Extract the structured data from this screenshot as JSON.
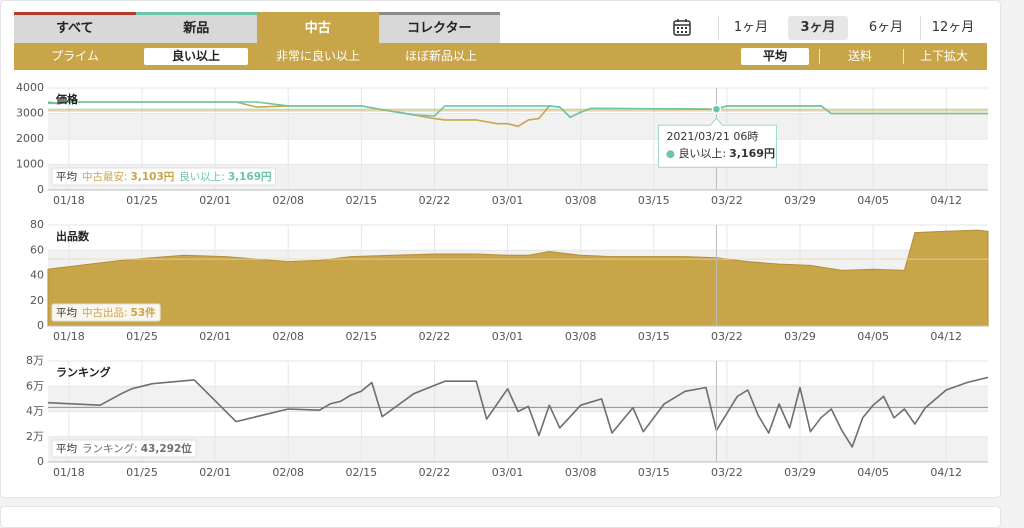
{
  "tabs": [
    "すべて",
    "新品",
    "中古",
    "コレクター"
  ],
  "active_tab": 2,
  "conditions": [
    "プライム",
    "良い以上",
    "非常に良い以上",
    "ほぼ新品以上"
  ],
  "active_condition": 1,
  "options": [
    "平均",
    "送料",
    "上下拡大"
  ],
  "active_option": 0,
  "periods": [
    "1ヶ月",
    "3ヶ月",
    "6ヶ月",
    "12ヶ月"
  ],
  "active_period": 1,
  "average_label": "平均",
  "chart_data": [
    {
      "type": "line",
      "title": "価格",
      "x": [
        "01/16",
        "01/17",
        "01/18",
        "02/03",
        "02/05",
        "02/08",
        "02/15",
        "02/17",
        "02/20",
        "02/22",
        "02/23",
        "02/26",
        "02/28",
        "03/01",
        "03/02",
        "03/03",
        "03/04",
        "03/05",
        "03/06",
        "03/07",
        "03/08",
        "03/09",
        "03/21",
        "03/22",
        "03/31",
        "04/01",
        "04/16"
      ],
      "series": [
        {
          "name": "中古最安:",
          "color": "#c9a54a",
          "average": 3103,
          "average_label": "3,103円",
          "values": [
            3400,
            3400,
            3450,
            3450,
            3250,
            3300,
            3300,
            3150,
            2950,
            2800,
            2750,
            2750,
            2600,
            2600,
            2500,
            2750,
            2800,
            3300,
            3250,
            2850,
            3050,
            3200,
            3169,
            3300,
            3300,
            3000,
            3000
          ]
        },
        {
          "name": "良い以上:",
          "color": "#6cc5a8",
          "average": 3169,
          "average_label": "3,169円",
          "values": [
            3450,
            3400,
            3450,
            3450,
            3450,
            3300,
            3300,
            3150,
            2950,
            2900,
            3300,
            3300,
            3300,
            3300,
            3300,
            3300,
            3300,
            3300,
            3250,
            2850,
            3050,
            3200,
            3169,
            3300,
            3300,
            3000,
            3000
          ]
        }
      ],
      "xlim": [
        "01/16",
        "04/16"
      ],
      "xticks": [
        "01/18",
        "01/25",
        "02/01",
        "02/08",
        "02/15",
        "02/22",
        "03/01",
        "03/08",
        "03/15",
        "03/22",
        "03/29",
        "04/05",
        "04/12"
      ],
      "ylim": [
        0,
        4000
      ],
      "yticks": [
        0,
        1000,
        2000,
        3000,
        4000
      ],
      "grid": true,
      "tooltip": {
        "title": "2021/03/21 06時",
        "series": 1,
        "index": 22,
        "value_label": "3,169円"
      }
    },
    {
      "type": "area",
      "title": "出品数",
      "x": [
        "01/16",
        "01/20",
        "01/23",
        "01/26",
        "01/29",
        "02/02",
        "02/05",
        "02/08",
        "02/11",
        "02/14",
        "02/18",
        "02/22",
        "02/26",
        "03/01",
        "03/03",
        "03/05",
        "03/08",
        "03/11",
        "03/15",
        "03/18",
        "03/21",
        "03/24",
        "03/27",
        "03/30",
        "04/02",
        "04/05",
        "04/08",
        "04/09",
        "04/12",
        "04/15",
        "04/16"
      ],
      "series": [
        {
          "name": "中古出品:",
          "color": "#c9a54a",
          "average": 53,
          "average_label": "53件",
          "values": [
            45,
            49,
            52,
            54,
            56,
            55,
            53,
            51,
            52,
            55,
            56,
            57,
            57,
            56,
            56,
            59,
            56,
            55,
            55,
            55,
            54,
            51,
            49,
            48,
            44,
            45,
            44,
            74,
            75,
            76,
            75
          ]
        }
      ],
      "xlim": [
        "01/16",
        "04/16"
      ],
      "xticks": [
        "01/18",
        "01/25",
        "02/01",
        "02/08",
        "02/15",
        "02/22",
        "03/01",
        "03/08",
        "03/15",
        "03/22",
        "03/29",
        "04/05",
        "04/12"
      ],
      "ylim": [
        0,
        80
      ],
      "yticks": [
        0,
        20,
        40,
        60,
        80
      ],
      "grid": true
    },
    {
      "type": "line",
      "title": "ランキング",
      "x": [
        "01/16",
        "01/21",
        "01/23",
        "01/24",
        "01/26",
        "01/30",
        "02/03",
        "02/08",
        "02/11",
        "02/12",
        "02/13",
        "02/14",
        "02/15",
        "02/16",
        "02/17",
        "02/20",
        "02/23",
        "02/26",
        "02/27",
        "03/01",
        "03/02",
        "03/03",
        "03/04",
        "03/05",
        "03/06",
        "03/08",
        "03/10",
        "03/11",
        "03/13",
        "03/14",
        "03/16",
        "03/18",
        "03/20",
        "03/21",
        "03/23",
        "03/24",
        "03/25",
        "03/26",
        "03/27",
        "03/28",
        "03/29",
        "03/30",
        "03/31",
        "04/01",
        "04/02",
        "04/03",
        "04/04",
        "04/05",
        "04/06",
        "04/07",
        "04/08",
        "04/09",
        "04/10",
        "04/11",
        "04/12",
        "04/14",
        "04/16"
      ],
      "series": [
        {
          "name": "ランキング:",
          "color": "#6e6e6e",
          "average": 43292,
          "average_label": "43,292位",
          "values": [
            47000,
            45000,
            54000,
            58000,
            62000,
            65000,
            32000,
            42000,
            41000,
            46000,
            48000,
            53000,
            56000,
            63000,
            36000,
            54000,
            64000,
            64000,
            34000,
            58000,
            40000,
            44000,
            21000,
            45000,
            27000,
            45000,
            50000,
            23000,
            43000,
            24000,
            46000,
            56000,
            59000,
            25000,
            52000,
            57000,
            37000,
            23000,
            46000,
            27000,
            59000,
            24000,
            35000,
            42000,
            25000,
            12000,
            35000,
            45000,
            52000,
            35000,
            42000,
            30000,
            43000,
            50000,
            57000,
            63000,
            67000
          ]
        }
      ],
      "xlim": [
        "01/16",
        "04/16"
      ],
      "xticks": [
        "01/18",
        "01/25",
        "02/01",
        "02/08",
        "02/15",
        "02/22",
        "03/01",
        "03/08",
        "03/15",
        "03/22",
        "03/29",
        "04/05",
        "04/12"
      ],
      "ylim": [
        0,
        80000
      ],
      "yticks": [
        0,
        {
          "value": 20000,
          "label": "2万"
        },
        {
          "value": 40000,
          "label": "4万"
        },
        {
          "value": 60000,
          "label": "6万"
        },
        {
          "value": 80000,
          "label": "8万"
        }
      ],
      "grid": true
    }
  ]
}
